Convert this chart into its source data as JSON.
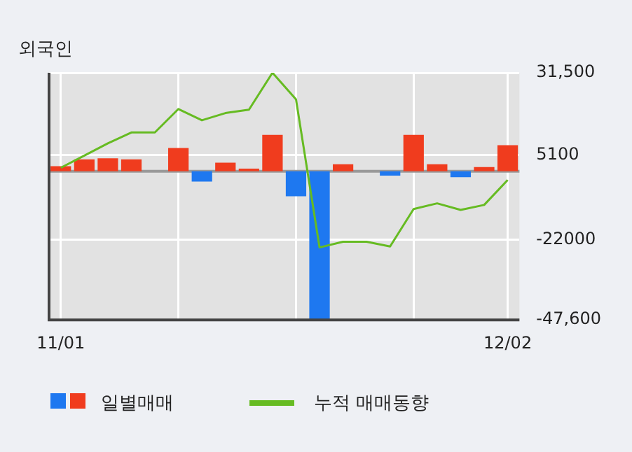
{
  "chart_data": {
    "type": "bar",
    "title": "외국인",
    "categories": [
      "11/01",
      null,
      null,
      null,
      null,
      null,
      null,
      null,
      null,
      null,
      null,
      null,
      null,
      null,
      null,
      null,
      null,
      null,
      null,
      "12/02"
    ],
    "series": [
      {
        "name": "일별매매",
        "colors": [
          "#f03c1e",
          "#f03c1e",
          "#f03c1e",
          "#f03c1e",
          "#f03c1e",
          "#f03c1e",
          "#1e78f0",
          "#f03c1e",
          "#f03c1e",
          "#f03c1e",
          "#1e78f0",
          "#1e78f0",
          "#f03c1e",
          "#f03c1e",
          "#1e78f0",
          "#f03c1e",
          "#f03c1e",
          "#1e78f0",
          "#f03c1e",
          "#f03c1e"
        ],
        "values": [
          1600,
          3800,
          4100,
          3800,
          0,
          7400,
          -3300,
          2700,
          800,
          11600,
          -8000,
          -47600,
          2200,
          0,
          -1400,
          11600,
          2200,
          -1900,
          1300,
          8300
        ]
      },
      {
        "name": "누적 매매동향",
        "type": "line",
        "color": "#66bb22",
        "values": [
          1100,
          5000,
          8900,
          12400,
          12400,
          19900,
          16300,
          18600,
          19700,
          31500,
          23000,
          -24400,
          -22600,
          -22600,
          -24100,
          -12100,
          -10300,
          -12400,
          -10800,
          -2800
        ]
      }
    ],
    "ylim": [
      -47600,
      31500
    ],
    "yticks": [
      {
        "value": -47600,
        "label": "-47,600"
      },
      -22000,
      5100,
      {
        "value": 31500,
        "label": "31,500"
      }
    ],
    "ref_lines": [
      {
        "axis": "y",
        "value": 0,
        "color": "#999999"
      }
    ],
    "grid": true,
    "legend": "bottom left",
    "marker": "none",
    "line_style": "solid"
  }
}
